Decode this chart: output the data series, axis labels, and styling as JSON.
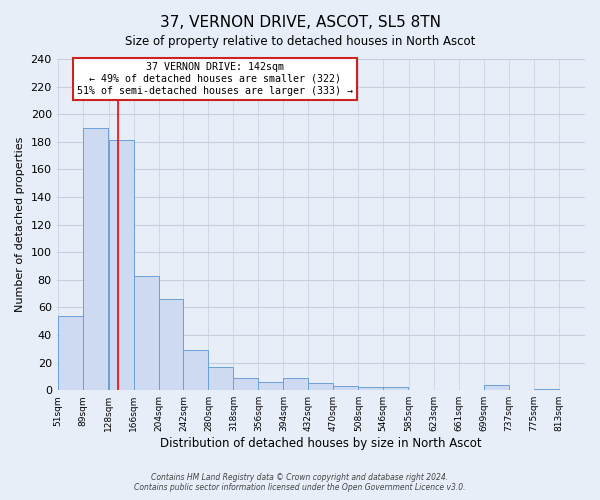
{
  "title": "37, VERNON DRIVE, ASCOT, SL5 8TN",
  "subtitle": "Size of property relative to detached houses in North Ascot",
  "xlabel": "Distribution of detached houses by size in North Ascot",
  "ylabel": "Number of detached properties",
  "bin_labels": [
    "51sqm",
    "89sqm",
    "128sqm",
    "166sqm",
    "204sqm",
    "242sqm",
    "280sqm",
    "318sqm",
    "356sqm",
    "394sqm",
    "432sqm",
    "470sqm",
    "508sqm",
    "546sqm",
    "585sqm",
    "623sqm",
    "661sqm",
    "699sqm",
    "737sqm",
    "775sqm",
    "813sqm"
  ],
  "bin_edges": [
    51,
    89,
    128,
    166,
    204,
    242,
    280,
    318,
    356,
    394,
    432,
    470,
    508,
    546,
    585,
    623,
    661,
    699,
    737,
    775,
    813
  ],
  "bar_heights": [
    54,
    190,
    181,
    83,
    66,
    29,
    17,
    9,
    6,
    9,
    5,
    3,
    2,
    2,
    0,
    0,
    0,
    4,
    0,
    1,
    0
  ],
  "bar_color": "#cddaf2",
  "bar_edgecolor": "#6a9fd8",
  "ylim": [
    0,
    240
  ],
  "yticks": [
    0,
    20,
    40,
    60,
    80,
    100,
    120,
    140,
    160,
    180,
    200,
    220,
    240
  ],
  "red_line_x": 142,
  "annotation_title": "37 VERNON DRIVE: 142sqm",
  "annotation_line1": "← 49% of detached houses are smaller (322)",
  "annotation_line2": "51% of semi-detached houses are larger (333) →",
  "footer1": "Contains HM Land Registry data © Crown copyright and database right 2024.",
  "footer2": "Contains public sector information licensed under the Open Government Licence v3.0.",
  "background_color": "#e8eef8",
  "grid_color": "#d0d8e8"
}
